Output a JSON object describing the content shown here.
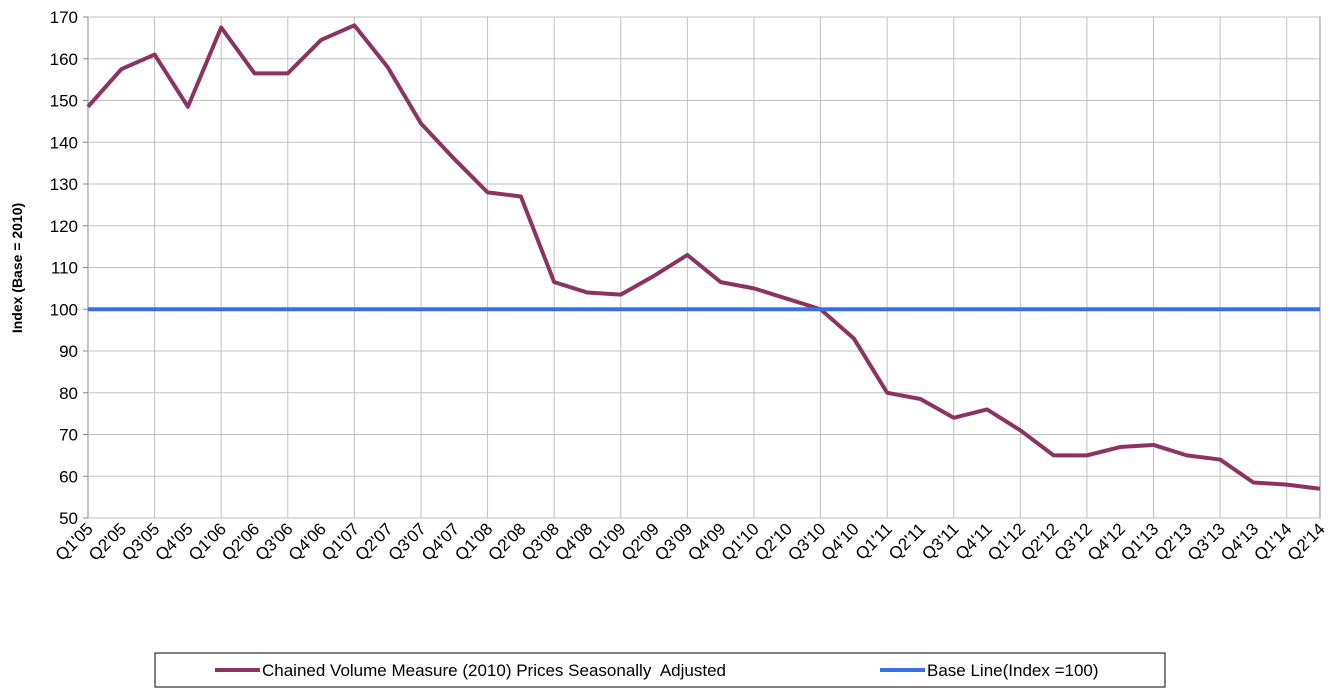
{
  "chart_data": {
    "type": "line",
    "y_label": "Index (Base = 2010)",
    "categories": [
      "Q1'05",
      "Q2'05",
      "Q3'05",
      "Q4'05",
      "Q1'06",
      "Q2'06",
      "Q3'06",
      "Q4'06",
      "Q1'07",
      "Q2'07",
      "Q3'07",
      "Q4'07",
      "Q1'08",
      "Q2'08",
      "Q3'08",
      "Q4'08",
      "Q1'09",
      "Q2'09",
      "Q3'09",
      "Q4'09",
      "Q1'10",
      "Q2'10",
      "Q3'10",
      "Q4'10",
      "Q1'11",
      "Q2'11",
      "Q3'11",
      "Q4'11",
      "Q1'12",
      "Q2'12",
      "Q3'12",
      "Q4'12",
      "Q1'13",
      "Q2'13",
      "Q3'13",
      "Q4'13",
      "Q1'14",
      "Q2'14"
    ],
    "series": [
      {
        "name": "Chained Volume Measure (2010) Prices Seasonally  Adjusted",
        "color": "#8b3463",
        "values": [
          148.5,
          157.5,
          161,
          148.5,
          167.5,
          156.5,
          156.5,
          164.5,
          168,
          158,
          144.5,
          136,
          128,
          127,
          106.5,
          104,
          103.5,
          108,
          113,
          106.5,
          105,
          102.5,
          100,
          93,
          80,
          78.5,
          74,
          76,
          71,
          65,
          65,
          67,
          67.5,
          65,
          64,
          58.5,
          58,
          57
        ]
      },
      {
        "name": "Base Line(Index =100)",
        "color": "#3b6fe8",
        "values": [
          100,
          100,
          100,
          100,
          100,
          100,
          100,
          100,
          100,
          100,
          100,
          100,
          100,
          100,
          100,
          100,
          100,
          100,
          100,
          100,
          100,
          100,
          100,
          100,
          100,
          100,
          100,
          100,
          100,
          100,
          100,
          100,
          100,
          100,
          100,
          100,
          100,
          100
        ]
      }
    ],
    "ylim": [
      50,
      170
    ],
    "yticks": [
      50,
      60,
      70,
      80,
      90,
      100,
      110,
      120,
      130,
      140,
      150,
      160,
      170
    ],
    "grid": true,
    "legend": "bottom"
  }
}
